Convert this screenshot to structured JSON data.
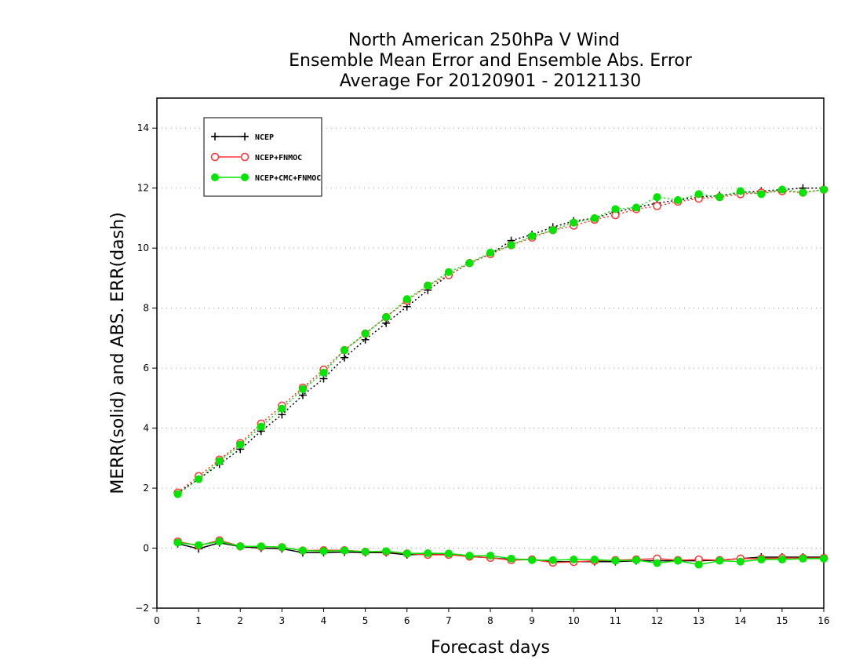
{
  "chart_data": {
    "type": "line",
    "title_lines": [
      "North American 250hPa V Wind",
      "Ensemble Mean Error and Ensemble Abs. Error",
      "Average For 20120901 - 20121130"
    ],
    "xlabel": "Forecast days",
    "ylabel": "MERR(solid) and ABS. ERR(dash)",
    "xlim": [
      0,
      16
    ],
    "ylim": [
      -2,
      15
    ],
    "xticks": [
      0,
      1,
      2,
      3,
      4,
      5,
      6,
      7,
      8,
      9,
      10,
      11,
      12,
      13,
      14,
      15,
      16
    ],
    "yticks": [
      -2,
      0,
      2,
      4,
      6,
      8,
      10,
      12,
      14
    ],
    "grid": "horizontal dotted",
    "legend_position": "top-left",
    "x": [
      0.5,
      1,
      1.5,
      2,
      2.5,
      3,
      3.5,
      4,
      4.5,
      5,
      5.5,
      6,
      6.5,
      7,
      7.5,
      8,
      8.5,
      9,
      9.5,
      10,
      10.5,
      11,
      11.5,
      12,
      12.5,
      13,
      13.5,
      14,
      14.5,
      15,
      15.5,
      16
    ],
    "series": [
      {
        "name": "NCEP",
        "color": "#000000",
        "marker": "plus",
        "merr": [
          0.15,
          -0.02,
          0.18,
          0.05,
          0.0,
          -0.02,
          -0.15,
          -0.15,
          -0.13,
          -0.15,
          -0.15,
          -0.22,
          -0.2,
          -0.2,
          -0.28,
          -0.32,
          -0.38,
          -0.38,
          -0.45,
          -0.45,
          -0.45,
          -0.45,
          -0.42,
          -0.42,
          -0.42,
          -0.42,
          -0.4,
          -0.35,
          -0.3,
          -0.3,
          -0.3,
          -0.3
        ],
        "abs_err": [
          1.85,
          2.3,
          2.8,
          3.3,
          3.9,
          4.45,
          5.1,
          5.65,
          6.35,
          6.95,
          7.5,
          8.05,
          8.6,
          9.1,
          9.5,
          9.8,
          10.25,
          10.45,
          10.7,
          10.9,
          11.0,
          11.2,
          11.35,
          11.5,
          11.6,
          11.7,
          11.75,
          11.85,
          11.9,
          11.95,
          12.0,
          12.0
        ]
      },
      {
        "name": "NCEP+FNMOC",
        "color": "#ff3333",
        "marker": "open-circle",
        "merr": [
          0.22,
          0.08,
          0.26,
          0.06,
          0.05,
          0.03,
          -0.08,
          -0.07,
          -0.07,
          -0.12,
          -0.12,
          -0.18,
          -0.22,
          -0.22,
          -0.28,
          -0.32,
          -0.4,
          -0.38,
          -0.48,
          -0.46,
          -0.42,
          -0.4,
          -0.38,
          -0.35,
          -0.4,
          -0.38,
          -0.4,
          -0.35,
          -0.35,
          -0.33,
          -0.33,
          -0.33
        ],
        "abs_err": [
          1.85,
          2.4,
          2.95,
          3.5,
          4.15,
          4.75,
          5.35,
          5.95,
          6.6,
          7.15,
          7.7,
          8.25,
          8.75,
          9.1,
          9.5,
          9.8,
          10.1,
          10.35,
          10.6,
          10.75,
          10.95,
          11.1,
          11.3,
          11.4,
          11.55,
          11.65,
          11.7,
          11.8,
          11.85,
          11.9,
          11.85,
          11.95
        ]
      },
      {
        "name": "NCEP+CMC+FNMOC",
        "color": "#00e600",
        "marker": "filled-circle",
        "merr": [
          0.18,
          0.1,
          0.22,
          0.06,
          0.06,
          0.03,
          -0.08,
          -0.1,
          -0.08,
          -0.12,
          -0.1,
          -0.18,
          -0.17,
          -0.18,
          -0.25,
          -0.25,
          -0.35,
          -0.4,
          -0.4,
          -0.38,
          -0.38,
          -0.42,
          -0.4,
          -0.5,
          -0.42,
          -0.55,
          -0.42,
          -0.45,
          -0.38,
          -0.38,
          -0.35,
          -0.35
        ],
        "abs_err": [
          1.8,
          2.3,
          2.9,
          3.45,
          4.05,
          4.65,
          5.3,
          5.85,
          6.6,
          7.15,
          7.7,
          8.3,
          8.75,
          9.2,
          9.5,
          9.85,
          10.1,
          10.4,
          10.6,
          10.85,
          11.0,
          11.3,
          11.35,
          11.7,
          11.6,
          11.8,
          11.7,
          11.9,
          11.8,
          11.95,
          11.85,
          11.95
        ]
      }
    ]
  }
}
